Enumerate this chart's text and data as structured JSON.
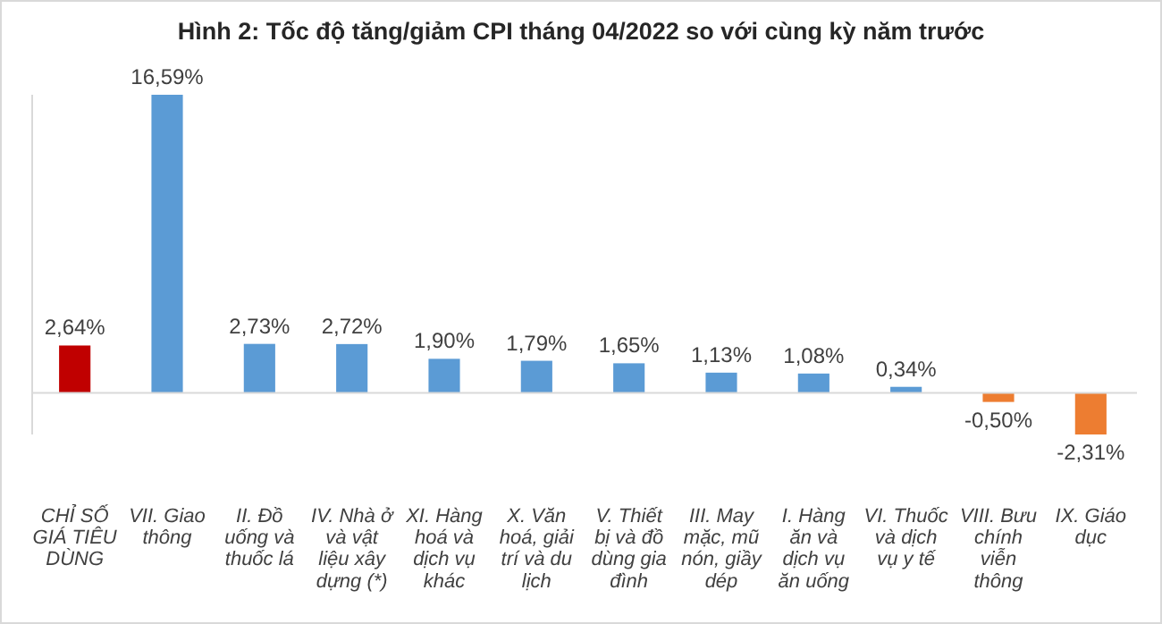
{
  "chart_data": {
    "type": "bar",
    "title": "Hình 2: Tốc độ tăng/giảm CPI tháng 04/2022 so với cùng kỳ năm trước",
    "categories": [
      "CHỈ SỐ GIÁ TIÊU DÙNG",
      "VII. Giao thông",
      "II. Đồ uống và thuốc lá",
      "IV. Nhà ở và vật liệu xây dựng (*)",
      "XI. Hàng hoá và dịch vụ khác",
      "X. Văn hoá, giải trí và du lịch",
      "V. Thiết bị và đồ dùng gia đình",
      "III. May mặc, mũ nón, giầy dép",
      "I. Hàng ăn và dịch vụ ăn uống",
      "VI. Thuốc và dịch vụ y tế",
      "VIII. Bưu chính viễn thông",
      "IX. Giáo dục"
    ],
    "values": [
      2.64,
      16.59,
      2.73,
      2.72,
      1.9,
      1.79,
      1.65,
      1.13,
      1.08,
      0.34,
      -0.5,
      -2.31
    ],
    "colors": [
      "#c00000",
      "#5b9bd5",
      "#5b9bd5",
      "#5b9bd5",
      "#5b9bd5",
      "#5b9bd5",
      "#5b9bd5",
      "#5b9bd5",
      "#5b9bd5",
      "#5b9bd5",
      "#ed7d31",
      "#ed7d31"
    ],
    "value_labels": [
      "2,64%",
      "16,59%",
      "2,73%",
      "2,72%",
      "1,90%",
      "1,79%",
      "1,65%",
      "1,13%",
      "1,08%",
      "0,34%",
      "-0,50%",
      "-2,31%"
    ]
  }
}
